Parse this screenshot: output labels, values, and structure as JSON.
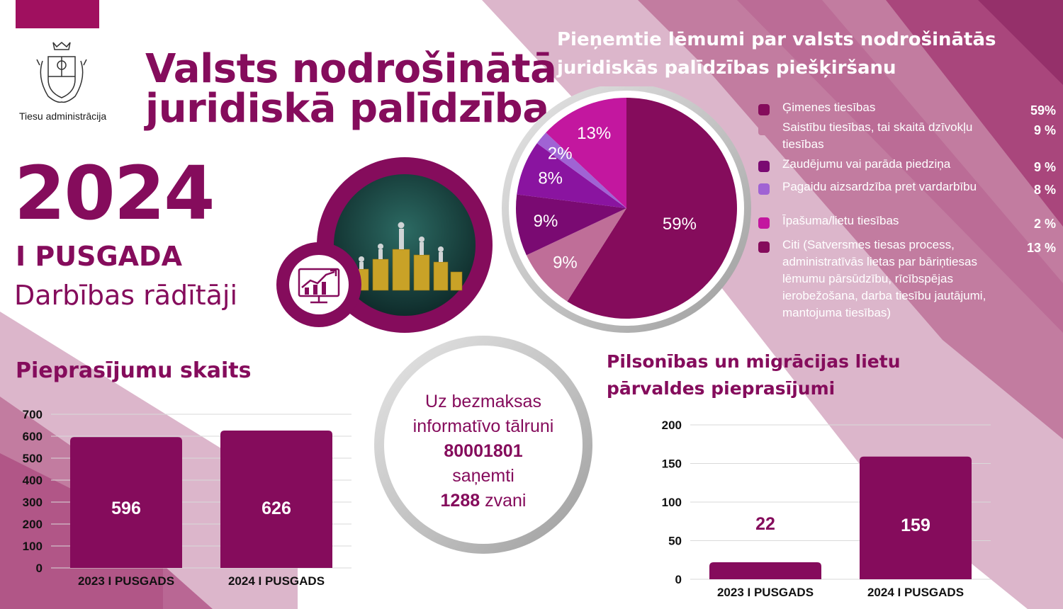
{
  "header": {
    "org_name": "Tiesu administrācija",
    "title_line1": "Valsts nodrošinātā",
    "title_line2": "juridiskā palīdzība"
  },
  "period": {
    "year": "2024",
    "half": "I PUSGADA",
    "subtitle": "Darbības rādītāji"
  },
  "phone_info": {
    "line1": "Uz bezmaksas",
    "line2": "informatīvo tālruni",
    "number": "80001801",
    "line3": "saņemti",
    "calls": "1288",
    "calls_suffix": " zvani"
  },
  "colors": {
    "brand": "#850c5c",
    "pink_light": "#dcb6cb",
    "pink_mid": "#c27ca0",
    "pink_dark": "#a9467c",
    "gray_ring": "#c6c6c6"
  },
  "icons": [
    "coat-of-arms-icon",
    "chart-monitor-icon"
  ],
  "chart_data": [
    {
      "type": "pie",
      "title": "Pieņemtie lēmumi par valsts nodrošinātās juridiskās palīdzības piešķiršanu",
      "slices": [
        {
          "label": "Ģimenes tiesības",
          "value": 59,
          "display": "59%",
          "legend_value": "59%",
          "color": "#850c5c"
        },
        {
          "label": "Saistību tiesības, tai skaitā dzīvokļu tiesības",
          "value": 9,
          "display": "9%",
          "legend_value": "9 %",
          "color": "#bf6e98"
        },
        {
          "label": "Zaudējumu vai parāda piedziņa",
          "value": 9,
          "display": "9%",
          "legend_value": "9 %",
          "color": "#7a0a72"
        },
        {
          "label": "Pagaidu aizsardzība pret vardarbību",
          "value": 8,
          "display": "8%",
          "legend_value": "8 %",
          "color": "#8a14a0"
        },
        {
          "label": "Īpašuma/lietu tiesības",
          "value": 2,
          "display": "2%",
          "legend_value": "2 %",
          "color": "#a063d4"
        },
        {
          "label": "Citi (Satversmes tiesas process, administratīvās lietas par bāriņtiesas lēmumu pārsūdzību, rīcībspējas ierobežošana, darba tiesību jautājumi, mantojuma tiesības)",
          "value": 13,
          "display": "13%",
          "legend_value": "13 %",
          "color": "#c3179f"
        }
      ],
      "legend_placement": "right"
    },
    {
      "type": "bar",
      "title": "Pieprasījumu skaits",
      "categories": [
        "2023 I PUSGADS",
        "2024 I PUSGADS"
      ],
      "values": [
        596,
        626
      ],
      "ylim": [
        0,
        700
      ],
      "yticks": [
        0,
        100,
        200,
        300,
        400,
        500,
        600,
        700
      ],
      "grid": true,
      "xlabel": "",
      "ylabel": ""
    },
    {
      "type": "bar",
      "title": "Pilsonības un migrācijas lietu pārvaldes pieprasījumi",
      "categories": [
        "2023 I PUSGADS",
        "2024 I PUSGADS"
      ],
      "values": [
        22,
        159
      ],
      "ylim": [
        0,
        200
      ],
      "yticks": [
        0,
        50,
        100,
        150,
        200
      ],
      "grid": true,
      "xlabel": "",
      "ylabel": ""
    }
  ]
}
